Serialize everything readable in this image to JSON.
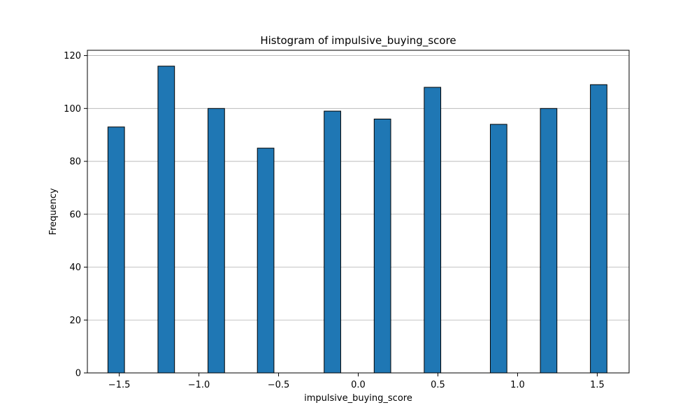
{
  "chart_data": {
    "type": "bar",
    "title": "Histogram of impulsive_buying_score",
    "xlabel": "impulsive_buying_score",
    "ylabel": "Frequency",
    "xlim": [
      -1.7,
      1.7
    ],
    "ylim": [
      0,
      122
    ],
    "xticks": [
      -1.5,
      -1.0,
      -0.5,
      0.0,
      0.5,
      1.0,
      1.5
    ],
    "xtick_labels": [
      "−1.5",
      "−1.0",
      "−0.5",
      "0.0",
      "0.5",
      "1.0",
      "1.5"
    ],
    "yticks": [
      0,
      20,
      40,
      60,
      80,
      100,
      120
    ],
    "ytick_labels": [
      "0",
      "20",
      "40",
      "60",
      "80",
      "100",
      "120"
    ],
    "grid": "y",
    "bar_color": "#1f77b4",
    "edge_color": "#000000",
    "bins": [
      {
        "x0": -1.571,
        "x1": -1.467,
        "count": 93
      },
      {
        "x0": -1.257,
        "x1": -1.153,
        "count": 116
      },
      {
        "x0": -0.943,
        "x1": -0.839,
        "count": 100
      },
      {
        "x0": -0.633,
        "x1": -0.529,
        "count": 85
      },
      {
        "x0": -0.214,
        "x1": -0.11,
        "count": 99
      },
      {
        "x0": 0.1,
        "x1": 0.204,
        "count": 96
      },
      {
        "x0": 0.414,
        "x1": 0.518,
        "count": 108
      },
      {
        "x0": 0.829,
        "x1": 0.933,
        "count": 94
      },
      {
        "x0": 1.143,
        "x1": 1.247,
        "count": 100
      },
      {
        "x0": 1.457,
        "x1": 1.561,
        "count": 109
      }
    ]
  }
}
